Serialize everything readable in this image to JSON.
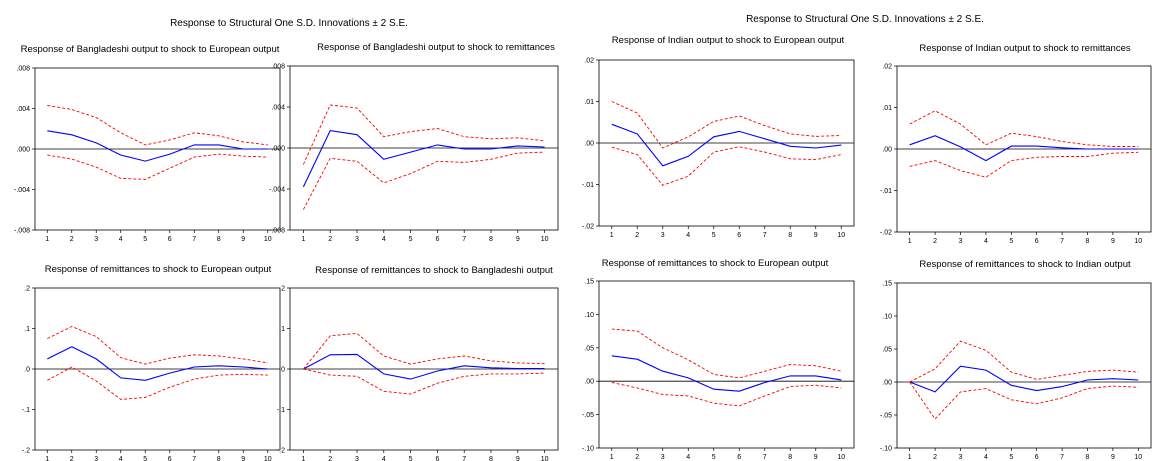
{
  "figures": [
    {
      "title": "Response to Structural One S.D. Innovations ± 2 S.E."
    },
    {
      "title": "Response to Structural One S.D. Innovations ± 2 S.E."
    }
  ],
  "colors": {
    "response": "#0000ff",
    "bands": "#ff0000",
    "axis": "#000000"
  },
  "chart_data": [
    {
      "type": "line",
      "title": "Response of Bangladeshi output to shock to European output",
      "x": [
        1,
        2,
        3,
        4,
        5,
        6,
        7,
        8,
        9,
        10
      ],
      "ylim": [
        -0.008,
        0.008
      ],
      "yticks": [
        ".008",
        ".004",
        ".000",
        "-.004",
        "-.008"
      ],
      "ytick_values": [
        0.008,
        0.004,
        0.0,
        -0.004,
        -0.008
      ],
      "series": [
        {
          "role": "response",
          "values": [
            0.0018,
            0.0014,
            0.0006,
            -0.0006,
            -0.0012,
            -0.0005,
            0.0004,
            0.0004,
            0.0,
            0.0
          ]
        },
        {
          "role": "upper",
          "values": [
            0.0043,
            0.0039,
            0.0031,
            0.0016,
            0.0004,
            0.0009,
            0.0016,
            0.0013,
            0.0007,
            0.0004
          ]
        },
        {
          "role": "lower",
          "values": [
            -0.0006,
            -0.001,
            -0.0018,
            -0.0029,
            -0.003,
            -0.0019,
            -0.0008,
            -0.0005,
            -0.0007,
            -0.0008
          ]
        }
      ]
    },
    {
      "type": "line",
      "title": "Response of Bangladeshi output to shock to remittances",
      "x": [
        1,
        2,
        3,
        4,
        5,
        6,
        7,
        8,
        9,
        10
      ],
      "ylim": [
        -0.008,
        0.008
      ],
      "yticks": [
        ".008",
        ".004",
        ".000",
        "-.004",
        "-.008"
      ],
      "ytick_values": [
        0.008,
        0.004,
        0.0,
        -0.004,
        -0.008
      ],
      "series": [
        {
          "role": "response",
          "values": [
            -0.0038,
            0.0017,
            0.0013,
            -0.0011,
            -0.0004,
            0.0003,
            -0.0001,
            -0.0001,
            0.0002,
            0.0001
          ]
        },
        {
          "role": "upper",
          "values": [
            -0.0016,
            0.0042,
            0.0039,
            0.0011,
            0.0016,
            0.0019,
            0.0011,
            0.0009,
            0.001,
            0.0007
          ]
        },
        {
          "role": "lower",
          "values": [
            -0.006,
            -0.001,
            -0.0013,
            -0.0034,
            -0.0025,
            -0.0013,
            -0.0014,
            -0.0011,
            -0.0005,
            -0.0004
          ]
        }
      ]
    },
    {
      "type": "line",
      "title": "Response of Indian output to shock to European output",
      "x": [
        1,
        2,
        3,
        4,
        5,
        6,
        7,
        8,
        9,
        10
      ],
      "ylim": [
        -0.02,
        0.02
      ],
      "yticks": [
        ".02",
        ".01",
        ".00",
        "-.01",
        "-.02"
      ],
      "ytick_values": [
        0.02,
        0.01,
        0.0,
        -0.01,
        -0.02
      ],
      "series": [
        {
          "role": "response",
          "values": [
            0.0045,
            0.0022,
            -0.0055,
            -0.0032,
            0.0015,
            0.0028,
            0.001,
            -0.0008,
            -0.0012,
            -0.0005
          ]
        },
        {
          "role": "upper",
          "values": [
            0.01,
            0.0072,
            -0.0012,
            0.0015,
            0.0052,
            0.0065,
            0.0042,
            0.0022,
            0.0016,
            0.0018
          ]
        },
        {
          "role": "lower",
          "values": [
            -0.001,
            -0.0028,
            -0.0102,
            -0.008,
            -0.0022,
            -0.0009,
            -0.0022,
            -0.0038,
            -0.004,
            -0.0028
          ]
        }
      ]
    },
    {
      "type": "line",
      "title": "Response of Indian output to shock to remittances",
      "x": [
        1,
        2,
        3,
        4,
        5,
        6,
        7,
        8,
        9,
        10
      ],
      "ylim": [
        -0.02,
        0.02
      ],
      "yticks": [
        ".02",
        ".01",
        ".00",
        "-.01",
        "-.02"
      ],
      "ytick_values": [
        0.02,
        0.01,
        0.0,
        -0.01,
        -0.02
      ],
      "series": [
        {
          "role": "response",
          "values": [
            0.001,
            0.0032,
            0.0005,
            -0.0028,
            0.0007,
            0.0007,
            0.0003,
            0.0,
            0.0,
            0.0
          ]
        },
        {
          "role": "upper",
          "values": [
            0.006,
            0.0092,
            0.006,
            0.001,
            0.0038,
            0.003,
            0.0018,
            0.001,
            0.0006,
            0.0006
          ]
        },
        {
          "role": "lower",
          "values": [
            -0.0042,
            -0.0028,
            -0.0052,
            -0.0068,
            -0.0028,
            -0.002,
            -0.0018,
            -0.0018,
            -0.001,
            -0.0008
          ]
        }
      ]
    },
    {
      "type": "line",
      "title": "Response of remittances to shock to European output",
      "x": [
        1,
        2,
        3,
        4,
        5,
        6,
        7,
        8,
        9,
        10
      ],
      "ylim": [
        -0.2,
        0.2
      ],
      "yticks": [
        ".2",
        ".1",
        ".0",
        "-.1",
        "-.2"
      ],
      "ytick_values": [
        0.2,
        0.1,
        0.0,
        -0.1,
        -0.2
      ],
      "series": [
        {
          "role": "response",
          "values": [
            0.025,
            0.055,
            0.025,
            -0.022,
            -0.028,
            -0.01,
            0.005,
            0.008,
            0.005,
            0.0
          ]
        },
        {
          "role": "upper",
          "values": [
            0.075,
            0.105,
            0.08,
            0.028,
            0.012,
            0.027,
            0.035,
            0.032,
            0.025,
            0.015
          ]
        },
        {
          "role": "lower",
          "values": [
            -0.028,
            0.005,
            -0.03,
            -0.075,
            -0.07,
            -0.045,
            -0.025,
            -0.015,
            -0.013,
            -0.015
          ]
        }
      ]
    },
    {
      "type": "line",
      "title": "Response of remittances to shock to Bangladeshi output",
      "x": [
        1,
        2,
        3,
        4,
        5,
        6,
        7,
        8,
        9,
        10
      ],
      "ylim": [
        -0.2,
        0.2
      ],
      "yticks": [
        ".2",
        ".1",
        ".0",
        "-.1",
        "-.2"
      ],
      "ytick_values": [
        0.2,
        0.1,
        0.0,
        -0.1,
        -0.2
      ],
      "series": [
        {
          "role": "response",
          "values": [
            0.0,
            0.035,
            0.036,
            -0.012,
            -0.025,
            -0.005,
            0.008,
            0.003,
            0.001,
            0.001
          ]
        },
        {
          "role": "upper",
          "values": [
            0.0,
            0.082,
            0.088,
            0.032,
            0.012,
            0.025,
            0.032,
            0.02,
            0.015,
            0.013
          ]
        },
        {
          "role": "lower",
          "values": [
            0.0,
            -0.015,
            -0.018,
            -0.055,
            -0.062,
            -0.035,
            -0.018,
            -0.012,
            -0.012,
            -0.01
          ]
        }
      ]
    },
    {
      "type": "line",
      "title": "Response of remittances to shock to European output",
      "x": [
        1,
        2,
        3,
        4,
        5,
        6,
        7,
        8,
        9,
        10
      ],
      "ylim": [
        -0.1,
        0.15
      ],
      "yticks": [
        ".15",
        ".10",
        ".05",
        ".00",
        "-.05",
        "-.10"
      ],
      "ytick_values": [
        0.15,
        0.1,
        0.05,
        0.0,
        -0.05,
        -0.1
      ],
      "series": [
        {
          "role": "response",
          "values": [
            0.038,
            0.033,
            0.015,
            0.005,
            -0.012,
            -0.015,
            -0.002,
            0.008,
            0.008,
            0.002
          ]
        },
        {
          "role": "upper",
          "values": [
            0.078,
            0.075,
            0.05,
            0.032,
            0.01,
            0.005,
            0.015,
            0.025,
            0.023,
            0.015
          ]
        },
        {
          "role": "lower",
          "values": [
            -0.002,
            -0.01,
            -0.02,
            -0.022,
            -0.033,
            -0.037,
            -0.022,
            -0.008,
            -0.006,
            -0.01
          ]
        }
      ]
    },
    {
      "type": "line",
      "title": "Response of remittances to shock to Indian output",
      "x": [
        1,
        2,
        3,
        4,
        5,
        6,
        7,
        8,
        9,
        10
      ],
      "ylim": [
        -0.1,
        0.15
      ],
      "yticks": [
        ".15",
        ".10",
        ".05",
        ".00",
        "-.05",
        "-.10"
      ],
      "ytick_values": [
        0.15,
        0.1,
        0.05,
        0.0,
        -0.05,
        -0.1
      ],
      "series": [
        {
          "role": "response",
          "values": [
            0.0,
            -0.015,
            0.024,
            0.018,
            -0.005,
            -0.013,
            -0.007,
            0.003,
            0.005,
            0.003
          ]
        },
        {
          "role": "upper",
          "values": [
            0.0,
            0.02,
            0.062,
            0.048,
            0.015,
            0.004,
            0.01,
            0.016,
            0.018,
            0.015
          ]
        },
        {
          "role": "lower",
          "values": [
            0.0,
            -0.056,
            -0.015,
            -0.01,
            -0.027,
            -0.033,
            -0.024,
            -0.01,
            -0.006,
            -0.008
          ]
        }
      ]
    }
  ]
}
